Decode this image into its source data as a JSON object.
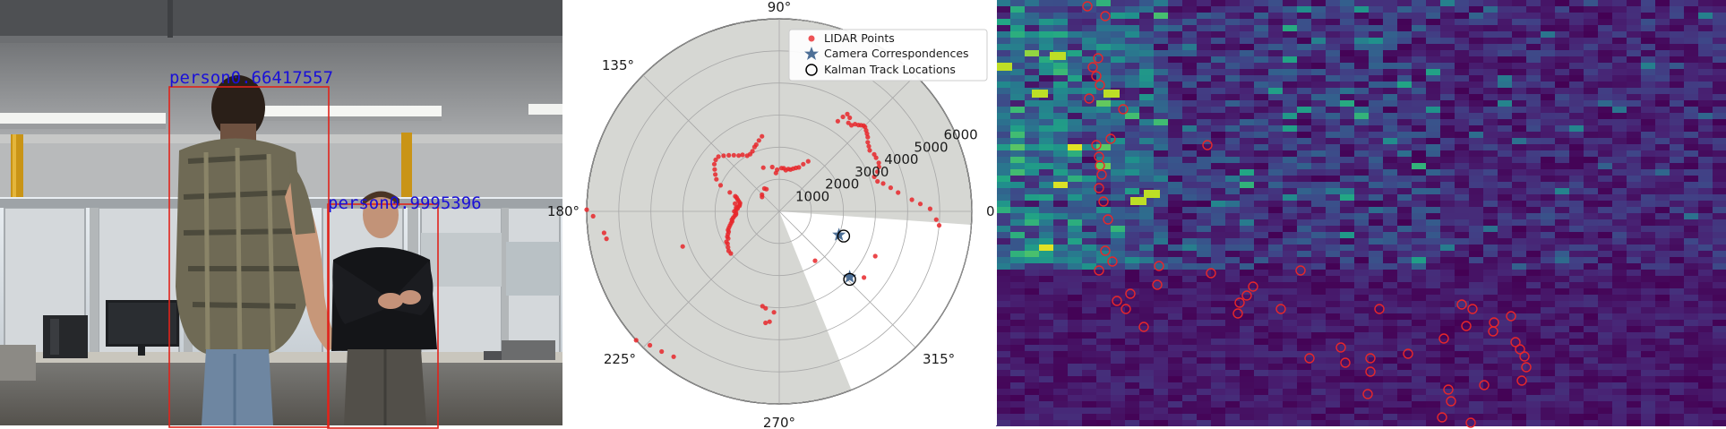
{
  "camera": {
    "detections": [
      {
        "label": "person0.66417557"
      },
      {
        "label": "person0.9995396"
      }
    ]
  },
  "polar": {
    "angle_labels": [
      "0°",
      "90°",
      "135°",
      "180°",
      "225°",
      "270°",
      "315°"
    ],
    "radial_labels": [
      "1000",
      "2000",
      "3000",
      "4000",
      "5000",
      "6000"
    ],
    "legend": {
      "lidar": "LIDAR Points",
      "camera": "Camera Correspondences",
      "kalman": "Kalman Track Locations"
    },
    "colors": {
      "lidar": "#e8272a",
      "camera": "#4d6f96",
      "background": "#d6d7d3",
      "kalman": "#000000"
    }
  },
  "chart_data": {
    "type": "scatter",
    "radial_range": [
      0,
      6000
    ],
    "radial_ticks": [
      1000,
      2000,
      3000,
      4000,
      5000,
      6000
    ],
    "angle_ticks_deg": [
      0,
      45,
      90,
      135,
      180,
      225,
      270,
      315
    ],
    "fov_unshaded_deg": [
      292,
      356
    ],
    "series": [
      {
        "name": "LIDAR Points",
        "points_theta_r": [
          [
            179.5,
            6000
          ],
          [
            181.5,
            5800
          ],
          [
            187,
            5500
          ],
          [
            189,
            5450
          ],
          [
            57,
            3350
          ],
          [
            56,
            3550
          ],
          [
            55,
            3700
          ],
          [
            53,
            3650
          ],
          [
            52,
            3500
          ],
          [
            50,
            3500
          ],
          [
            49,
            3600
          ],
          [
            47.5,
            3650
          ],
          [
            46.5,
            3700
          ],
          [
            45.5,
            3750
          ],
          [
            44.5,
            3750
          ],
          [
            43,
            3700
          ],
          [
            41.5,
            3650
          ],
          [
            40,
            3600
          ],
          [
            38,
            3500
          ],
          [
            36,
            3450
          ],
          [
            34,
            3400
          ],
          [
            31,
            3450
          ],
          [
            29,
            3450
          ],
          [
            26,
            3450
          ],
          [
            24,
            3400
          ],
          [
            22,
            3300
          ],
          [
            20,
            3150
          ],
          [
            17,
            3200
          ],
          [
            15,
            3350
          ],
          [
            12,
            3550
          ],
          [
            9,
            3750
          ],
          [
            5,
            4150
          ],
          [
            3,
            4400
          ],
          [
            1,
            4700
          ],
          [
            357,
            4900
          ],
          [
            355,
            5000
          ],
          [
            335,
            3300
          ],
          [
            322,
            3350
          ],
          [
            306,
            1900
          ],
          [
            267,
            3150
          ],
          [
            265,
            3450
          ],
          [
            263,
            3500
          ],
          [
            103,
            2400
          ],
          [
            106,
            2300
          ],
          [
            109,
            2200
          ],
          [
            111,
            2150
          ],
          [
            114,
            2050
          ],
          [
            117,
            2000
          ],
          [
            120,
            2000
          ],
          [
            123,
            2100
          ],
          [
            126,
            2150
          ],
          [
            129,
            2250
          ],
          [
            132,
            2350
          ],
          [
            135,
            2450
          ],
          [
            138,
            2550
          ],
          [
            141,
            2550
          ],
          [
            144,
            2500
          ],
          [
            147,
            2400
          ],
          [
            150,
            2300
          ],
          [
            153,
            2200
          ],
          [
            156,
            2000
          ],
          [
            159,
            1650
          ],
          [
            161,
            1450
          ],
          [
            162,
            1400
          ],
          [
            164,
            1350
          ],
          [
            166,
            1300
          ],
          [
            168,
            1250
          ],
          [
            170,
            1250
          ],
          [
            172,
            1250
          ],
          [
            174,
            1300
          ],
          [
            176,
            1300
          ],
          [
            178,
            1350
          ],
          [
            180,
            1400
          ],
          [
            182,
            1350
          ],
          [
            184,
            1350
          ],
          [
            186,
            1400
          ],
          [
            188,
            1450
          ],
          [
            190,
            1500
          ],
          [
            192,
            1500
          ],
          [
            194,
            1550
          ],
          [
            196,
            1600
          ],
          [
            198,
            1650
          ],
          [
            200,
            1700
          ],
          [
            202,
            1700
          ],
          [
            204,
            1750
          ],
          [
            206,
            1800
          ],
          [
            208,
            1800
          ],
          [
            210,
            1900
          ],
          [
            212,
            1900
          ],
          [
            215,
            1950
          ],
          [
            218,
            2000
          ],
          [
            221,
            2000
          ],
          [
            95,
            1200
          ],
          [
            93,
            1300
          ],
          [
            99,
            1400
          ],
          [
            110,
            1450
          ],
          [
            60,
            1800
          ],
          [
            63,
            1650
          ],
          [
            66,
            1500
          ],
          [
            69,
            1450
          ],
          [
            72,
            1400
          ],
          [
            75,
            1350
          ],
          [
            78,
            1350
          ],
          [
            81,
            1300
          ],
          [
            84,
            1350
          ],
          [
            87,
            1350
          ],
          [
            120,
            800
          ],
          [
            123,
            850
          ],
          [
            136,
            750
          ],
          [
            140,
            700
          ],
          [
            200,
            3200
          ],
          [
            222,
            6000
          ],
          [
            226,
            5800
          ],
          [
            230,
            5700
          ],
          [
            234,
            5600
          ],
          [
            260,
            3000
          ],
          [
            262,
            3050
          ],
          [
            170,
            1400
          ],
          [
            175,
            1350
          ]
        ]
      },
      {
        "name": "Camera Correspondences",
        "points_theta_r": [
          [
            338.5,
            2000
          ],
          [
            317,
            3000
          ]
        ]
      },
      {
        "name": "Kalman Track Locations",
        "points_theta_r": [
          [
            339,
            2150
          ],
          [
            316,
            3050
          ]
        ]
      }
    ],
    "legend_position": "top-right"
  },
  "heatmap": {
    "colormap": "viridis",
    "marker_color": "#e8272a"
  }
}
